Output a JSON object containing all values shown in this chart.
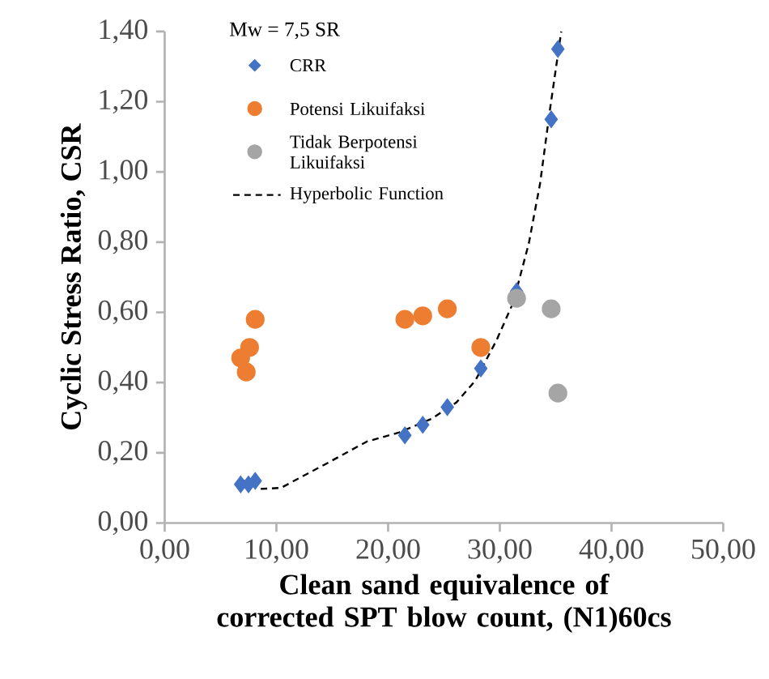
{
  "chart_data": {
    "type": "scatter",
    "xlabel": "Clean sand equivalence of corrected SPT blow count, (N1)60cs",
    "ylabel": "Cyclic Stress Ratio, CSR",
    "legend_title": "Mw = 7,5 SR",
    "legend": "top left",
    "grid": false,
    "xlim": [
      0,
      50
    ],
    "ylim": [
      0,
      1.4
    ],
    "xticks": [
      {
        "value": 0,
        "label": "0,00"
      },
      {
        "value": 10,
        "label": "10,00"
      },
      {
        "value": 20,
        "label": "20,00"
      },
      {
        "value": 30,
        "label": "30,00"
      },
      {
        "value": 40,
        "label": "40,00"
      },
      {
        "value": 50,
        "label": "50,00"
      }
    ],
    "yticks": [
      {
        "value": 0,
        "label": "0,00"
      },
      {
        "value": 0.2,
        "label": "0,20"
      },
      {
        "value": 0.4,
        "label": "0,40"
      },
      {
        "value": 0.6,
        "label": "0,60"
      },
      {
        "value": 0.8,
        "label": "0,80"
      },
      {
        "value": 1.0,
        "label": "1,00"
      },
      {
        "value": 1.2,
        "label": "1,20"
      },
      {
        "value": 1.4,
        "label": "1,40"
      }
    ],
    "series": [
      {
        "name": "CRR",
        "marker": "diamond",
        "color": "#4472c4",
        "x": [
          6.8,
          7.5,
          8.1,
          21.5,
          23.1,
          25.3,
          28.3,
          31.5,
          34.6,
          35.2
        ],
        "values": [
          0.11,
          0.11,
          0.12,
          0.25,
          0.28,
          0.33,
          0.44,
          0.66,
          1.15,
          1.35
        ]
      },
      {
        "name": "Potensi Likuifaksi",
        "marker": "circle",
        "color": "#ed7d31",
        "x": [
          6.8,
          7.3,
          7.6,
          8.1,
          21.5,
          23.1,
          25.3,
          28.3
        ],
        "values": [
          0.47,
          0.43,
          0.5,
          0.58,
          0.58,
          0.59,
          0.61,
          0.5
        ]
      },
      {
        "name": "Tidak Berpotensi Likuifaksi",
        "marker": "circle",
        "color": "#a5a5a5",
        "x": [
          31.5,
          34.6,
          35.2
        ],
        "values": [
          0.64,
          0.61,
          0.37
        ]
      },
      {
        "name": "Hyperbolic Function",
        "type": "line",
        "line_style": "dashed",
        "marker": "none",
        "color": "#000000",
        "x": [
          6.8,
          8.5,
          10.4,
          14.3,
          18.1,
          21,
          23.9,
          26.1,
          27.8,
          29.7,
          31.2,
          32.6,
          33.6,
          34.5,
          35.5
        ],
        "values": [
          0.125,
          0.097,
          0.1,
          0.166,
          0.232,
          0.258,
          0.297,
          0.343,
          0.405,
          0.52,
          0.628,
          0.797,
          0.966,
          1.18,
          1.4
        ]
      }
    ]
  }
}
